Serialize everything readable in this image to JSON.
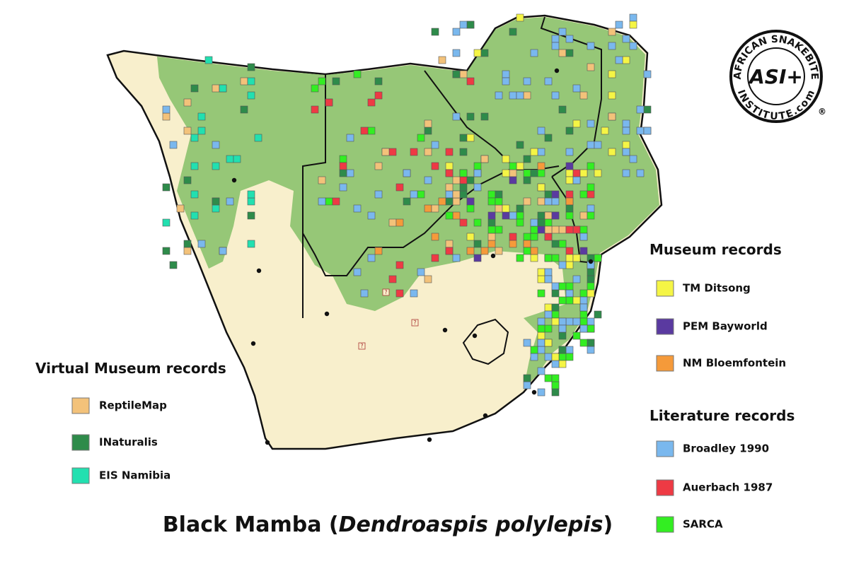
{
  "title": {
    "parts": [
      "Black Mamba (",
      "Dendroaspis polylepis",
      ")"
    ]
  },
  "logo": {
    "top_text": "AFRICAN SNAKEBITE",
    "bottom_text": "INSTITUTE.com",
    "mark": "ASI+",
    "registered": "®"
  },
  "map": {
    "unknown_marker": "?"
  },
  "legends": {
    "virtual_museum": {
      "title": "Virtual Museum records",
      "items": [
        {
          "label": "ReptileMap",
          "color": "#f3c27a"
        },
        {
          "label": "INaturalis",
          "color": "#2e8b4a"
        },
        {
          "label": "EIS Namibia",
          "color": "#22e0b0"
        }
      ]
    },
    "museum": {
      "title": "Museum records",
      "items": [
        {
          "label": "TM Ditsong",
          "color": "#f5f545"
        },
        {
          "label": "PEM Bayworld",
          "color": "#5a3aa0"
        },
        {
          "label": "NM Bloemfontein",
          "color": "#f59a3a"
        }
      ]
    },
    "literature": {
      "title": "Literature records",
      "items": [
        {
          "label": "Broadley 1990",
          "color": "#7ab8ee"
        },
        {
          "label": "Auerbach 1987",
          "color": "#ee3a44"
        },
        {
          "label": "SARCA",
          "color": "#33ee22"
        }
      ]
    }
  }
}
